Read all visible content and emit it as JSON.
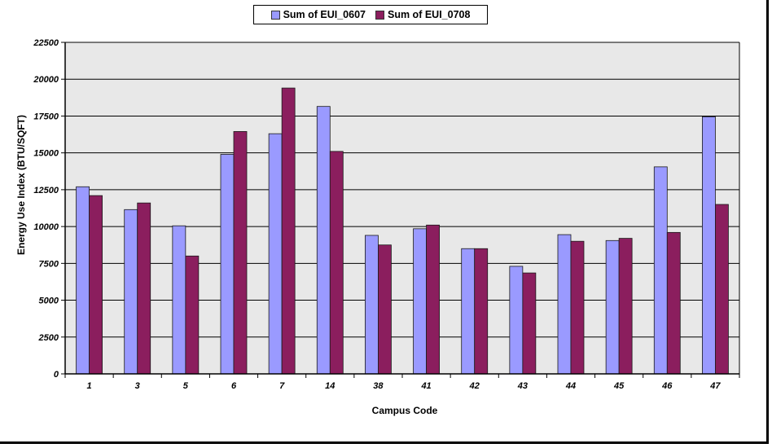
{
  "chart_data": {
    "type": "bar",
    "xlabel": "Campus Code",
    "ylabel": "Energy Use Index (BTU/SQFT)",
    "categories": [
      "1",
      "3",
      "5",
      "6",
      "7",
      "14",
      "38",
      "41",
      "42",
      "43",
      "44",
      "45",
      "46",
      "47"
    ],
    "series": [
      {
        "name": "Sum of EUI_0607",
        "color": "#9a9aff",
        "values": [
          12700,
          11150,
          10050,
          14900,
          16300,
          18150,
          9400,
          9850,
          8500,
          7300,
          9450,
          9050,
          14050,
          17450
        ]
      },
      {
        "name": "Sum of EUI_0708",
        "color": "#8b1e5e",
        "values": [
          12100,
          11600,
          8000,
          16450,
          19400,
          15100,
          8750,
          10100,
          8500,
          6850,
          9000,
          9200,
          9600,
          11500
        ]
      }
    ],
    "ylim": [
      0,
      22500
    ],
    "yticks": [
      0,
      2500,
      5000,
      7500,
      10000,
      12500,
      15000,
      17500,
      20000,
      22500
    ],
    "grid": true,
    "legend": "top-center",
    "plot_background": "#e8e8e8"
  }
}
